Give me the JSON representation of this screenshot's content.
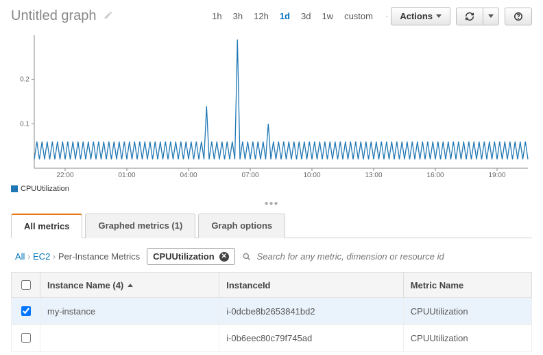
{
  "header": {
    "title": "Untitled graph",
    "time_ranges": [
      "1h",
      "3h",
      "12h",
      "1d",
      "3d",
      "1w",
      "custom"
    ],
    "active_range": "1d",
    "actions_label": "Actions"
  },
  "chart": {
    "type": "line",
    "y_ticks": [
      0.1,
      0.2
    ],
    "y_max": 0.3,
    "x_labels": [
      "22:00",
      "01:00",
      "04:00",
      "07:00",
      "10:00",
      "13:00",
      "16:00",
      "19:00"
    ],
    "series_color": "#1f77b4",
    "axis_color": "#888888",
    "tick_font_size": 10,
    "background": "#ffffff",
    "spike_positions": [
      0.345,
      0.41,
      0.475
    ],
    "spike_heights": [
      0.14,
      0.29,
      0.1
    ],
    "baseline_low": 0.02,
    "baseline_high": 0.06,
    "oscillation_count": 96
  },
  "legend": {
    "items": [
      {
        "label": "CPUUtilization",
        "color": "#1f77b4"
      }
    ]
  },
  "tabs": {
    "items": [
      "All metrics",
      "Graphed metrics (1)",
      "Graph options"
    ],
    "active": 0
  },
  "breadcrumb": {
    "links": [
      "All",
      "EC2"
    ],
    "current": "Per-Instance Metrics",
    "pill": "CPUUtilization",
    "search_placeholder": "Search for any metric, dimension or resource id"
  },
  "table": {
    "columns": [
      "Instance Name (4)",
      "InstanceId",
      "Metric Name"
    ],
    "sort_column": 0,
    "rows": [
      {
        "checked": true,
        "cells": [
          "my-instance",
          "i-0dcbe8b2653841bd2",
          "CPUUtilization"
        ]
      },
      {
        "checked": false,
        "cells": [
          "",
          "i-0b6eec80c79f745ad",
          "CPUUtilization"
        ]
      }
    ]
  }
}
